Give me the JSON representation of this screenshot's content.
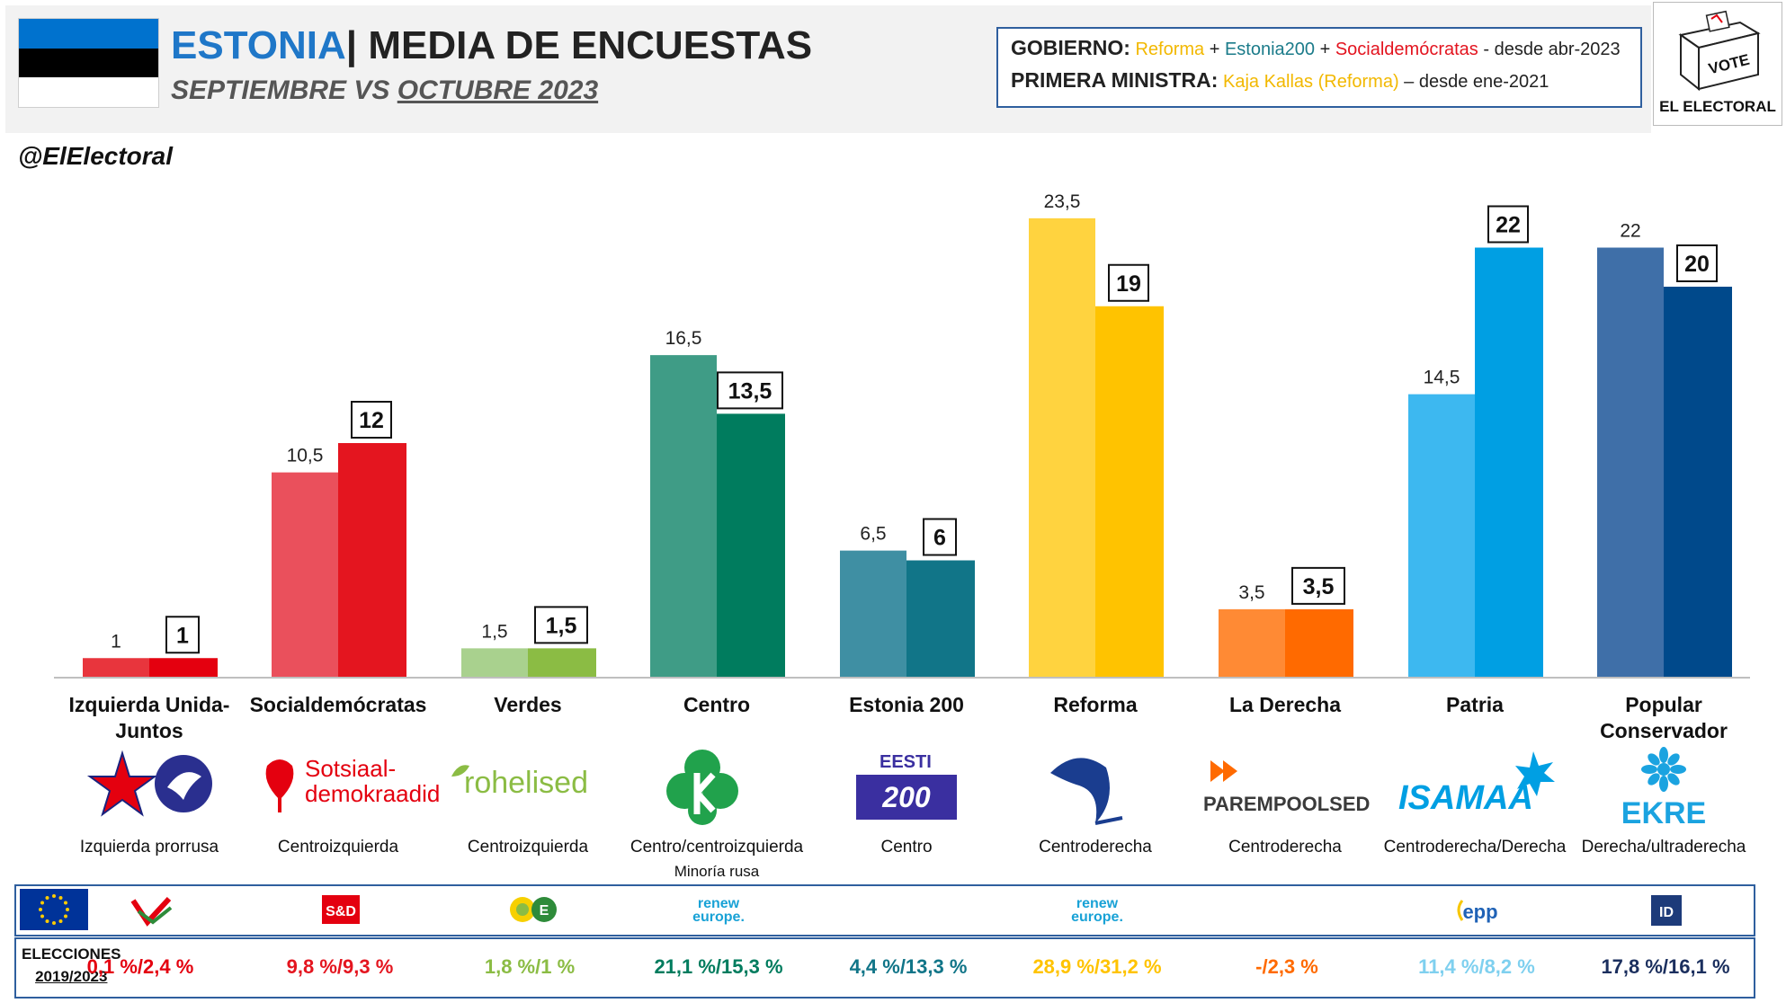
{
  "header": {
    "country": "ESTONIA",
    "title_rest": "| MEDIA DE ENCUESTAS",
    "subtitle_a": "SEPTIEMBRE",
    "subtitle_vs": " VS ",
    "subtitle_b": "OCTUBRE 2023",
    "flag_colors": [
      "#0072ce",
      "#000000",
      "#ffffff"
    ]
  },
  "gov": {
    "gob_label": "GOBIERNO:",
    "gob_p1": "Reforma",
    "gob_plus1": " + ",
    "gob_p2": "Estonia200",
    "gob_plus2": " + ",
    "gob_p3": "Socialdemócratas",
    "gob_since": " - desde abr-2023",
    "pm_label": "PRIMERA MINISTRA:",
    "pm_name": "Kaja Kallas (Reforma)",
    "pm_since": " – desde ene-2021"
  },
  "logo": {
    "vote": "VOTE",
    "name": "EL ELECTORAL"
  },
  "handle": "@ElElectoral",
  "chart_data": {
    "type": "bar",
    "categories": [
      "Izquierda Unida-Juntos",
      "Socialdemócratas",
      "Verdes",
      "Centro",
      "Estonia 200",
      "Reforma",
      "La Derecha",
      "Patria",
      "Popular Conservador"
    ],
    "series": [
      {
        "values": [
          1,
          10.5,
          1.5,
          16.5,
          6.5,
          23.5,
          3.5,
          14.5,
          22
        ]
      },
      {
        "values": [
          1,
          12,
          1.5,
          13.5,
          6,
          19,
          3.5,
          22,
          20
        ]
      }
    ],
    "labels_prev": [
      "1",
      "10,5",
      "1,5",
      "16,5",
      "6,5",
      "23,5",
      "3,5",
      "14,5",
      "22"
    ],
    "labels_curr": [
      "1",
      "12",
      "1,5",
      "13,5",
      "6",
      "19",
      "3,5",
      "22",
      "20"
    ],
    "colors_prev": [
      "#e8353d",
      "#ea505c",
      "#a9d18e",
      "#3f9c86",
      "#3f8fa3",
      "#ffd33f",
      "#ff8a34",
      "#3db8f0",
      "#3f6fa8"
    ],
    "colors_curr": [
      "#e4000f",
      "#e4151f",
      "#8bbc44",
      "#007c5e",
      "#117588",
      "#ffc300",
      "#ff6a00",
      "#009fe3",
      "#00498b"
    ],
    "ylim": [
      0,
      25
    ]
  },
  "parties": [
    {
      "name": "Izquierda Unida-Juntos",
      "desc": "Izquierda prorrusa",
      "note": "",
      "logo": "star-dove-icon",
      "euro": "gue-ngl-icon",
      "elec": "0,1 %/2,4 %",
      "elec_color": "#e4000f"
    },
    {
      "name": "Socialdemócratas",
      "desc": "Centroizquierda",
      "note": "",
      "logo": "rose-icon",
      "logo_text1": "Sotsiaal-",
      "logo_text2": "demokraadid",
      "euro": "s-and-d-icon",
      "euro_text": "S&D",
      "elec": "9,8 %/9,3 %",
      "elec_color": "#e4151f"
    },
    {
      "name": "Verdes",
      "desc": "Centroizquierda",
      "note": "",
      "logo": "leaf-icon",
      "logo_text1": "rohelised",
      "euro": "greens-efa-icon",
      "elec": "1,8 %/1 %",
      "elec_color": "#8bbc44"
    },
    {
      "name": "Centro",
      "desc": "Centro/centroizquierda",
      "note": "Minoría rusa",
      "logo": "clover-k-icon",
      "euro": "renew-europe-icon",
      "euro_text1": "renew",
      "euro_text2": "europe.",
      "elec": "21,1 %/15,3 %",
      "elec_color": "#007c5e"
    },
    {
      "name": "Estonia 200",
      "desc": "Centro",
      "note": "",
      "logo": "eesti200-icon",
      "logo_text1": "EESTI",
      "logo_text2": "200",
      "euro": "",
      "elec": "4,4 %/13,3 %",
      "elec_color": "#117588"
    },
    {
      "name": "Reforma",
      "desc": "Centroderecha",
      "note": "",
      "logo": "squirrel-icon",
      "euro": "renew-europe-icon",
      "euro_text1": "renew",
      "euro_text2": "europe.",
      "elec": "28,9 %/31,2 %",
      "elec_color": "#ffc300"
    },
    {
      "name": "La Derecha",
      "desc": "Centroderecha",
      "note": "",
      "logo": "double-arrow-icon",
      "logo_text1": "PAREMPOOLSED",
      "euro": "",
      "elec": "-/2,3 %",
      "elec_color": "#ff6a00"
    },
    {
      "name": "Patria",
      "desc": "Centroderecha/Derecha",
      "note": "",
      "logo": "isamaa-star-icon",
      "logo_text1": "ISAMAA",
      "euro": "epp-icon",
      "euro_text": "epp",
      "elec": "11,4 %/8,2 %",
      "elec_color": "#7fd0ef"
    },
    {
      "name": "Popular Conservador",
      "desc": "Derecha/ultraderecha",
      "note": "",
      "logo": "cornflower-icon",
      "logo_text1": "EKRE",
      "euro": "id-icon",
      "euro_text": "ID",
      "elec": "17,8 %/16,1 %",
      "elec_color": "#1b2f5e"
    }
  ],
  "elections": {
    "label1": "ELECCIONES",
    "label2": "2019/2023"
  },
  "eu_flag": "eu-flag-icon"
}
